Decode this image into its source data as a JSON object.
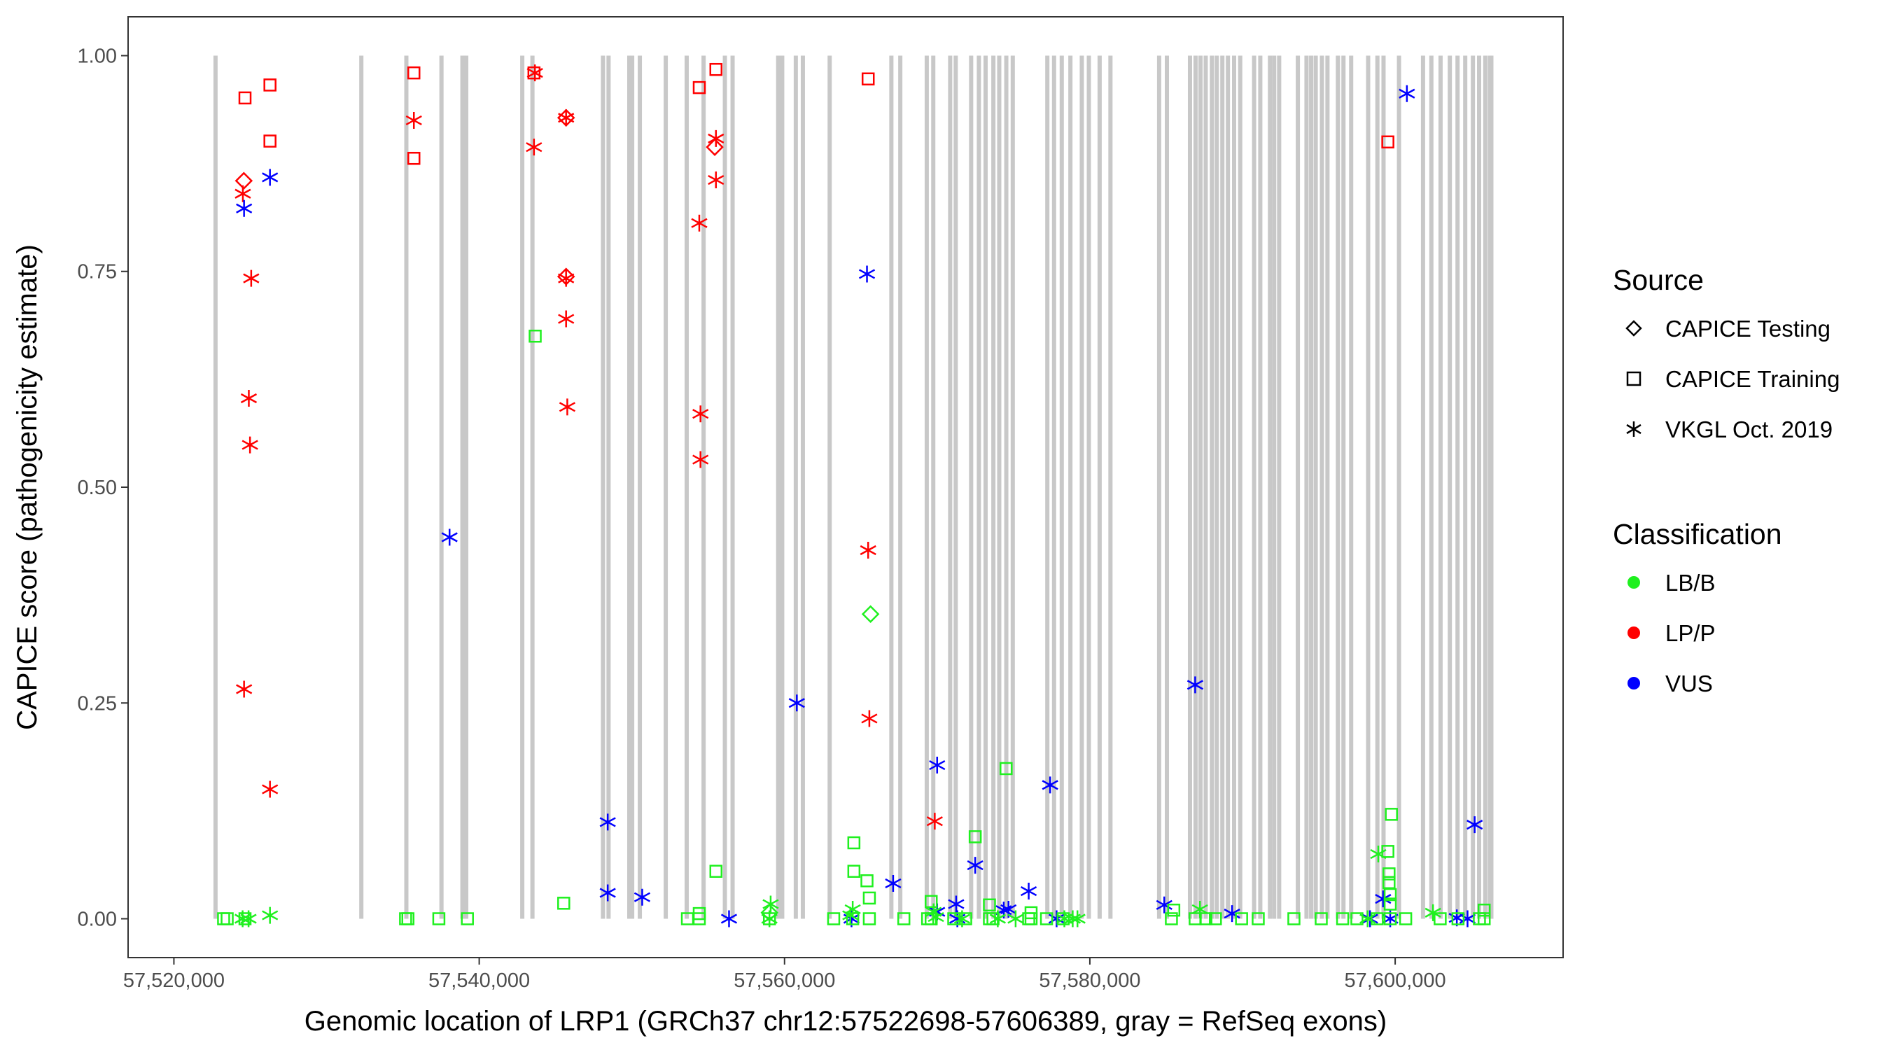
{
  "chart_data": {
    "type": "scatter",
    "xlabel": "Genomic location of LRP1 (GRCh37 chr12:57522698-57606389, gray = RefSeq exons)",
    "ylabel": "CAPICE score (pathogenicity estimate)",
    "xlim": [
      57517000,
      57611000
    ],
    "ylim": [
      -0.045,
      1.045
    ],
    "x_ticks": [
      57520000,
      57540000,
      57560000,
      57580000,
      57600000
    ],
    "x_tick_labels": [
      "57,520,000",
      "57,540,000",
      "57,560,000",
      "57,580,000",
      "57,600,000"
    ],
    "y_ticks": [
      0,
      0.25,
      0.5,
      0.75,
      1.0
    ],
    "y_tick_labels": [
      "0.00",
      "0.25",
      "0.50",
      "0.75",
      "1.00"
    ],
    "grid": false,
    "exon_color": "#c8c8c8",
    "exon_ymax": 1.0,
    "exons": [
      57522727,
      57532278,
      57535227,
      57537527,
      57538900,
      57539022,
      57539150,
      57542820,
      57543486,
      57548108,
      57548472,
      57549830,
      57550020,
      57550522,
      57552220,
      57553590,
      57554697,
      57556092,
      57556597,
      57559585,
      57559847,
      57560738,
      57561201,
      57562957,
      57566998,
      57567583,
      57569316,
      57569743,
      57570850,
      57571215,
      57572223,
      57572731,
      57573172,
      57573681,
      57574064,
      57574527,
      57574950,
      57577214,
      57577655,
      57578159,
      57578726,
      57579473,
      57579934,
      57580641,
      57581348,
      57584538,
      57585047,
      57586559,
      57586924,
      57587248,
      57587590,
      57587995,
      57588315,
      57588679,
      57589044,
      57589449,
      57589850,
      57590759,
      57591164,
      57591800,
      57592073,
      57592400,
      57593625,
      57594192,
      57594494,
      57594795,
      57595200,
      57595565,
      57596249,
      57596613,
      57597117,
      57598229,
      57598836,
      57599237,
      57600250,
      57601825,
      57602370,
      57602973,
      57603581,
      57604085,
      57604589,
      57605093,
      57605498,
      57605903,
      57606205,
      57606300
    ],
    "legend": {
      "placement": "right",
      "source_title": "Source",
      "sources": [
        {
          "name": "CAPICE Testing",
          "shape": "diamond"
        },
        {
          "name": "CAPICE Training",
          "shape": "square"
        },
        {
          "name": "VKGL Oct. 2019",
          "shape": "asterisk"
        }
      ],
      "class_title": "Classification",
      "classes": [
        {
          "name": "LB/B",
          "color": "#1ff01f"
        },
        {
          "name": "LP/P",
          "color": "#ff0000"
        },
        {
          "name": "VUS",
          "color": "#0000ff"
        }
      ]
    },
    "series": [
      {
        "source": "CAPICE Training",
        "classification": "LP/P",
        "points": [
          [
            57524658,
            0.951
          ],
          [
            57526294,
            0.966
          ],
          [
            57526294,
            0.901
          ],
          [
            57535720,
            0.98
          ],
          [
            57535720,
            0.881
          ],
          [
            57543588,
            0.98
          ],
          [
            57554416,
            0.963
          ],
          [
            57555507,
            0.984
          ],
          [
            57565478,
            0.973
          ],
          [
            57599520,
            0.9
          ]
        ]
      },
      {
        "source": "CAPICE Testing",
        "classification": "LP/P",
        "points": [
          [
            57524581,
            0.855
          ],
          [
            57545691,
            0.928
          ],
          [
            57545691,
            0.744
          ],
          [
            57555429,
            0.894
          ]
        ]
      },
      {
        "source": "VKGL Oct. 2019",
        "classification": "LP/P",
        "points": [
          [
            57524518,
            0.84
          ],
          [
            57525064,
            0.742
          ],
          [
            57524908,
            0.603
          ],
          [
            57524986,
            0.549
          ],
          [
            57524596,
            0.266
          ],
          [
            57526294,
            0.15
          ],
          [
            57535720,
            0.925
          ],
          [
            57543588,
            0.894
          ],
          [
            57543650,
            0.98
          ],
          [
            57545691,
            0.928
          ],
          [
            57545691,
            0.742
          ],
          [
            57545691,
            0.695
          ],
          [
            57545770,
            0.593
          ],
          [
            57555507,
            0.904
          ],
          [
            57555507,
            0.856
          ],
          [
            57554416,
            0.806
          ],
          [
            57554494,
            0.585
          ],
          [
            57554494,
            0.532
          ],
          [
            57565478,
            0.427
          ],
          [
            57565556,
            0.232
          ],
          [
            57569840,
            0.113
          ]
        ]
      },
      {
        "source": "VKGL Oct. 2019",
        "classification": "VUS",
        "points": [
          [
            57524596,
            0.823
          ],
          [
            57526294,
            0.859
          ],
          [
            57538057,
            0.442
          ],
          [
            57548418,
            0.112
          ],
          [
            57548418,
            0.03
          ],
          [
            57550677,
            0.025
          ],
          [
            57556364,
            0.0
          ],
          [
            57560804,
            0.25
          ],
          [
            57565400,
            0.747
          ],
          [
            57564387,
            0.0
          ],
          [
            57567114,
            0.041
          ],
          [
            57569996,
            0.178
          ],
          [
            57569996,
            0.008
          ],
          [
            57571242,
            0.017
          ],
          [
            57571320,
            0.0
          ],
          [
            57572489,
            0.062
          ],
          [
            57574358,
            0.01
          ],
          [
            57574670,
            0.011
          ],
          [
            57575994,
            0.032
          ],
          [
            57577397,
            0.155
          ],
          [
            57577822,
            0.0
          ],
          [
            57584875,
            0.016
          ],
          [
            57586900,
            0.271
          ],
          [
            57589315,
            0.006
          ],
          [
            57598353,
            0.0
          ],
          [
            57599209,
            0.023
          ],
          [
            57599675,
            0.0
          ],
          [
            57600767,
            0.956
          ],
          [
            57604038,
            0.001
          ],
          [
            57604739,
            0.0
          ],
          [
            57605207,
            0.109
          ]
        ]
      },
      {
        "source": "CAPICE Training",
        "classification": "LB/B",
        "points": [
          [
            57523256,
            0
          ],
          [
            57523490,
            0
          ],
          [
            57524658,
            0
          ],
          [
            57535175,
            0
          ],
          [
            57535331,
            0
          ],
          [
            57537356,
            0
          ],
          [
            57539226,
            0
          ],
          [
            57553639,
            0
          ],
          [
            57554416,
            0
          ],
          [
            57559012,
            0
          ],
          [
            57563219,
            0
          ],
          [
            57564465,
            0
          ],
          [
            57565556,
            0
          ],
          [
            57567815,
            0
          ],
          [
            57569373,
            0
          ],
          [
            57569606,
            0
          ],
          [
            57571086,
            0
          ],
          [
            57571865,
            0
          ],
          [
            57573423,
            0
          ],
          [
            57573657,
            0
          ],
          [
            57575994,
            0
          ],
          [
            57576150,
            0
          ],
          [
            57577163,
            0
          ],
          [
            57578253,
            0
          ],
          [
            57585342,
            0
          ],
          [
            57586900,
            0
          ],
          [
            57587601,
            0
          ],
          [
            57588224,
            0
          ],
          [
            57589938,
            0
          ],
          [
            57591029,
            0
          ],
          [
            57593366,
            0
          ],
          [
            57595157,
            0
          ],
          [
            57596560,
            0
          ],
          [
            57597494,
            0
          ],
          [
            57598818,
            0
          ],
          [
            57599675,
            0
          ],
          [
            57600688,
            0
          ],
          [
            57602947,
            0
          ],
          [
            57604116,
            0
          ],
          [
            57605518,
            0
          ],
          [
            57605829,
            0
          ],
          [
            57543666,
            0.675
          ],
          [
            57545535,
            0.018
          ],
          [
            57555507,
            0.055
          ],
          [
            57554416,
            0.006
          ],
          [
            57564543,
            0.088
          ],
          [
            57564543,
            0.055
          ],
          [
            57565400,
            0.044
          ],
          [
            57565556,
            0.024
          ],
          [
            57569606,
            0.02
          ],
          [
            57572489,
            0.095
          ],
          [
            57573423,
            0.016
          ],
          [
            57574514,
            0.174
          ],
          [
            57576150,
            0.007
          ],
          [
            57585498,
            0.01
          ],
          [
            57599753,
            0.121
          ],
          [
            57599520,
            0.078
          ],
          [
            57599597,
            0.052
          ],
          [
            57599597,
            0.042
          ],
          [
            57599675,
            0.028
          ],
          [
            57599675,
            0.017
          ],
          [
            57605829,
            0.01
          ]
        ]
      },
      {
        "source": "CAPICE Testing",
        "classification": "LB/B",
        "points": [
          [
            57565634,
            0.353
          ],
          [
            57559012,
            0.007
          ]
        ]
      },
      {
        "source": "VKGL Oct. 2019",
        "classification": "LB/B",
        "points": [
          [
            57524502,
            0
          ],
          [
            57524891,
            0
          ],
          [
            57526294,
            0.004
          ],
          [
            57559090,
            0.017
          ],
          [
            57559012,
            0
          ],
          [
            57564465,
            0.011
          ],
          [
            57564310,
            0.004
          ],
          [
            57569762,
            0.008
          ],
          [
            57569918,
            0.002
          ],
          [
            57571631,
            0
          ],
          [
            57573968,
            0
          ],
          [
            57575137,
            0
          ],
          [
            57578876,
            0
          ],
          [
            57579188,
            0
          ],
          [
            57578331,
            0
          ],
          [
            57587212,
            0.011
          ],
          [
            57598895,
            0.075
          ],
          [
            57598194,
            0
          ],
          [
            57602478,
            0.007
          ]
        ]
      }
    ]
  }
}
